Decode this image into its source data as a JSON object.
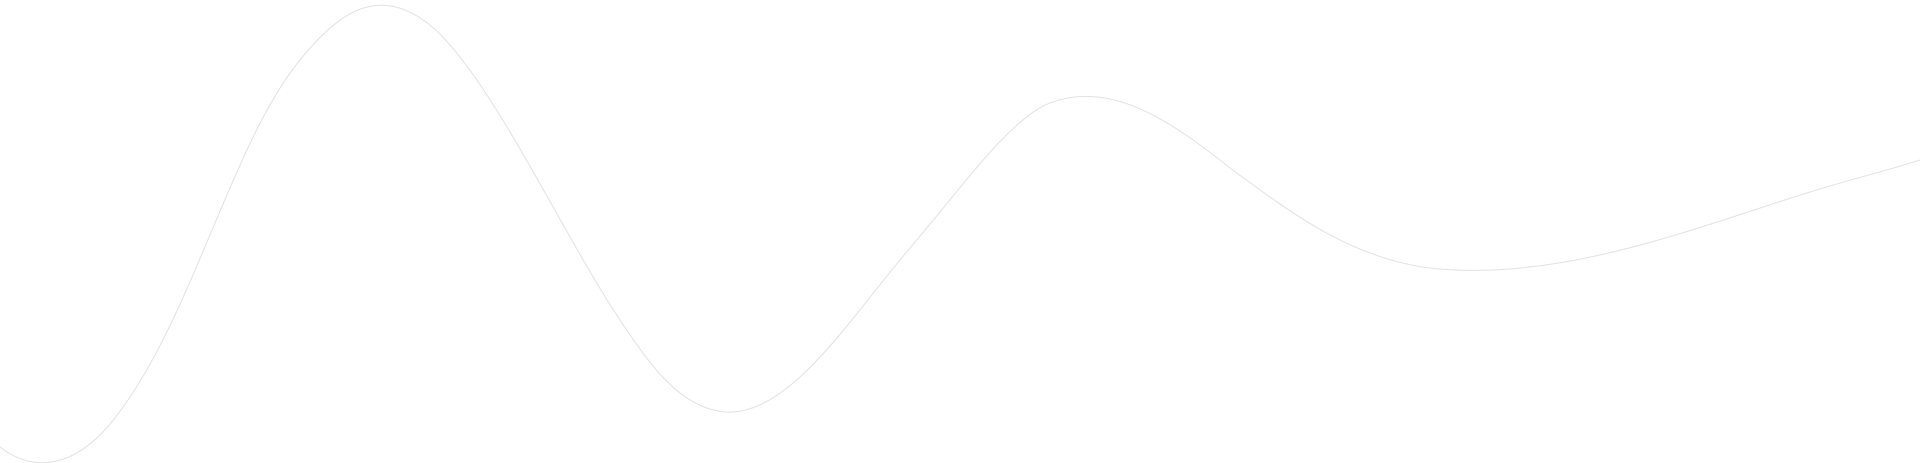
{
  "background": {
    "color": "#ffffff"
  },
  "wave": {
    "stroke_color": "#e2e2e2"
  }
}
